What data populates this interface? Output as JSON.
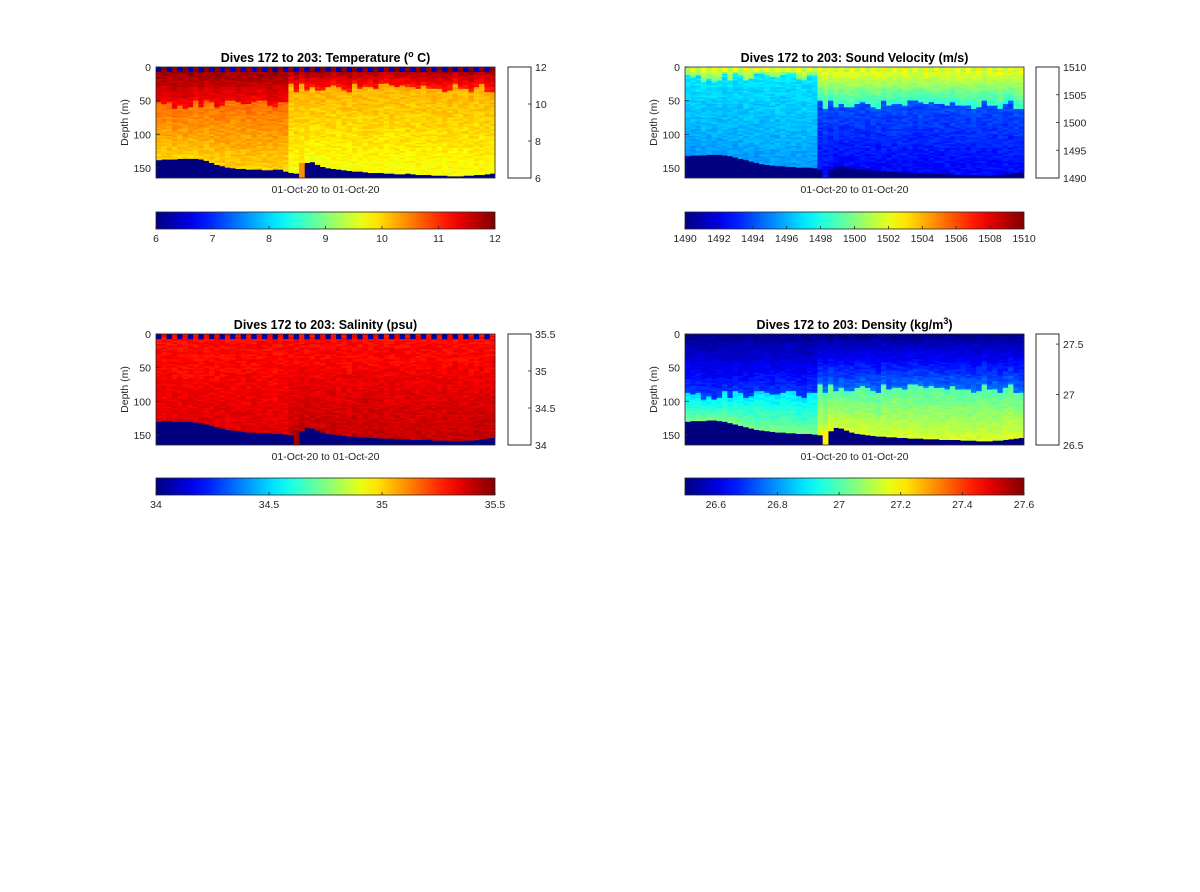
{
  "chart_data": [
    {
      "type": "heatmap",
      "title": "Dives 172 to 203: Temperature (",
      "title_sup": "o",
      "title_end": " C)",
      "ylabel": "Depth (m)",
      "xlabel": "01-Oct-20 to 01-Oct-20",
      "y_ticks": [
        "0",
        "50",
        "100",
        "150"
      ],
      "y_tick_values": [
        0,
        50,
        100,
        150
      ],
      "ylim": [
        0,
        165
      ],
      "y_reversed": true,
      "clim": [
        6,
        12
      ],
      "side_colorbar_ticks": [
        "6",
        "8",
        "10",
        "12"
      ],
      "bottom_colorbar_ticks": [
        "6",
        "7",
        "8",
        "9",
        "10",
        "11",
        "12"
      ],
      "colormap": "jet",
      "columns": 64,
      "surface_value": 11.9,
      "deep_value": 11.6,
      "break_column": 25,
      "upper_early": 10.6,
      "upper_late": 10.2,
      "lower_early": 10.0,
      "lower_late": 9.7,
      "trans_early": 55,
      "trans_late": 30,
      "top_flag_value": 6.3,
      "spike_column": 27,
      "spike_value": 10.4,
      "max_depth_profile": [
        138,
        137,
        137,
        137,
        136,
        136,
        136,
        136,
        137,
        139,
        142,
        145,
        147,
        149,
        150,
        151,
        151,
        152,
        152,
        152,
        153,
        153,
        152,
        152,
        155,
        157,
        158,
        165,
        142,
        141,
        145,
        148,
        150,
        151,
        152,
        153,
        154,
        155,
        155,
        156,
        157,
        157,
        157,
        158,
        158,
        159,
        159,
        158,
        159,
        160,
        160,
        160,
        161,
        161,
        161,
        162,
        162,
        162,
        161,
        161,
        160,
        160,
        159,
        158
      ]
    },
    {
      "type": "heatmap",
      "title": "Dives 172 to 203: Sound Velocity (m/s)",
      "ylabel": "Depth (m)",
      "xlabel": "01-Oct-20 to 01-Oct-20",
      "y_ticks": [
        "0",
        "50",
        "100",
        "150"
      ],
      "y_tick_values": [
        0,
        50,
        100,
        150
      ],
      "ylim": [
        0,
        165
      ],
      "y_reversed": true,
      "clim": [
        1490,
        1510
      ],
      "side_colorbar_ticks": [
        "1490",
        "1495",
        "1500",
        "1505",
        "1510"
      ],
      "bottom_colorbar_ticks": [
        "1490",
        "1492",
        "1494",
        "1496",
        "1498",
        "1500",
        "1502",
        "1504",
        "1506",
        "1508",
        "1510"
      ],
      "colormap": "jet",
      "columns": 64,
      "surface_value": 1502.5,
      "deep_value": 1491.5,
      "break_column": 25,
      "upper_early": 1497.0,
      "upper_late": 1494.0,
      "lower_early": 1495.5,
      "lower_late": 1492.5,
      "trans_early": 15,
      "trans_late": 55,
      "top_flag_value": 1501.0,
      "spike_column": 25,
      "spike_value": 1493.0,
      "max_depth_profile": [
        132,
        131,
        131,
        131,
        130,
        130,
        130,
        131,
        132,
        134,
        136,
        138,
        140,
        142,
        144,
        145,
        146,
        147,
        147,
        148,
        148,
        149,
        149,
        149,
        150,
        152,
        165,
        152,
        148,
        147,
        149,
        150,
        151,
        152,
        152,
        153,
        154,
        154,
        155,
        155,
        156,
        156,
        157,
        157,
        157,
        158,
        158,
        158,
        158,
        159,
        159,
        160,
        160,
        160,
        160,
        161,
        161,
        161,
        160,
        160,
        159,
        158,
        157,
        156
      ]
    },
    {
      "type": "heatmap",
      "title": "Dives 172 to 203: Salinity (psu)",
      "ylabel": "Depth (m)",
      "xlabel": "01-Oct-20 to 01-Oct-20",
      "y_ticks": [
        "0",
        "50",
        "100",
        "150"
      ],
      "y_tick_values": [
        0,
        50,
        100,
        150
      ],
      "ylim": [
        0,
        165
      ],
      "y_reversed": true,
      "clim": [
        34,
        35.5
      ],
      "side_colorbar_ticks": [
        "34",
        "34.5",
        "35",
        "35.5"
      ],
      "bottom_colorbar_ticks": [
        "34",
        "34.5",
        "35",
        "35.5"
      ],
      "colormap": "jet",
      "columns": 64,
      "surface_value": 35.3,
      "deep_value": 35.4,
      "break_column": 25,
      "upper_early": 35.32,
      "upper_late": 35.33,
      "lower_early": 35.36,
      "lower_late": 35.4,
      "trans_early": 60,
      "trans_late": 50,
      "top_flag_value": 34.05,
      "spike_column": 26,
      "spike_value": 35.45,
      "max_depth_profile": [
        130,
        129,
        129,
        130,
        130,
        130,
        130,
        131,
        132,
        134,
        136,
        138,
        140,
        142,
        143,
        144,
        145,
        146,
        146,
        147,
        147,
        147,
        148,
        148,
        149,
        150,
        165,
        144,
        139,
        140,
        143,
        146,
        148,
        149,
        150,
        151,
        152,
        152,
        153,
        153,
        154,
        154,
        155,
        155,
        155,
        156,
        156,
        156,
        157,
        157,
        157,
        157,
        158,
        158,
        158,
        159,
        159,
        159,
        158,
        158,
        157,
        156,
        155,
        154
      ]
    },
    {
      "type": "heatmap",
      "title": "Dives 172 to 203: Density (kg/m",
      "title_sup": "3",
      "title_end": ")",
      "ylabel": "Depth (m)",
      "xlabel": "01-Oct-20 to 01-Oct-20",
      "y_ticks": [
        "0",
        "50",
        "100",
        "150"
      ],
      "y_tick_values": [
        0,
        50,
        100,
        150
      ],
      "ylim": [
        0,
        165
      ],
      "y_reversed": true,
      "clim": [
        26.5,
        27.6
      ],
      "side_colorbar_ticks": [
        "26.5",
        "27",
        "27.5"
      ],
      "bottom_colorbar_ticks": [
        "26.6",
        "26.8",
        "27",
        "27.2",
        "27.4",
        "27.6"
      ],
      "colormap": "jet",
      "columns": 64,
      "surface_value": 26.52,
      "deep_value": 27.15,
      "break_column": 25,
      "upper_early": 26.88,
      "upper_late": 27.0,
      "lower_early": 27.05,
      "lower_late": 27.15,
      "trans_early": 90,
      "trans_late": 80,
      "top_flag_value": 26.52,
      "spike_column": 26,
      "spike_value": 27.2,
      "max_depth_profile": [
        130,
        129,
        129,
        129,
        128,
        128,
        129,
        130,
        132,
        134,
        136,
        138,
        140,
        142,
        143,
        144,
        145,
        146,
        146,
        147,
        147,
        148,
        148,
        148,
        149,
        150,
        165,
        144,
        139,
        140,
        143,
        146,
        148,
        149,
        150,
        151,
        152,
        152,
        153,
        153,
        154,
        154,
        155,
        155,
        155,
        156,
        156,
        156,
        157,
        157,
        157,
        157,
        158,
        158,
        158,
        159,
        159,
        159,
        158,
        158,
        157,
        156,
        155,
        154
      ]
    }
  ]
}
